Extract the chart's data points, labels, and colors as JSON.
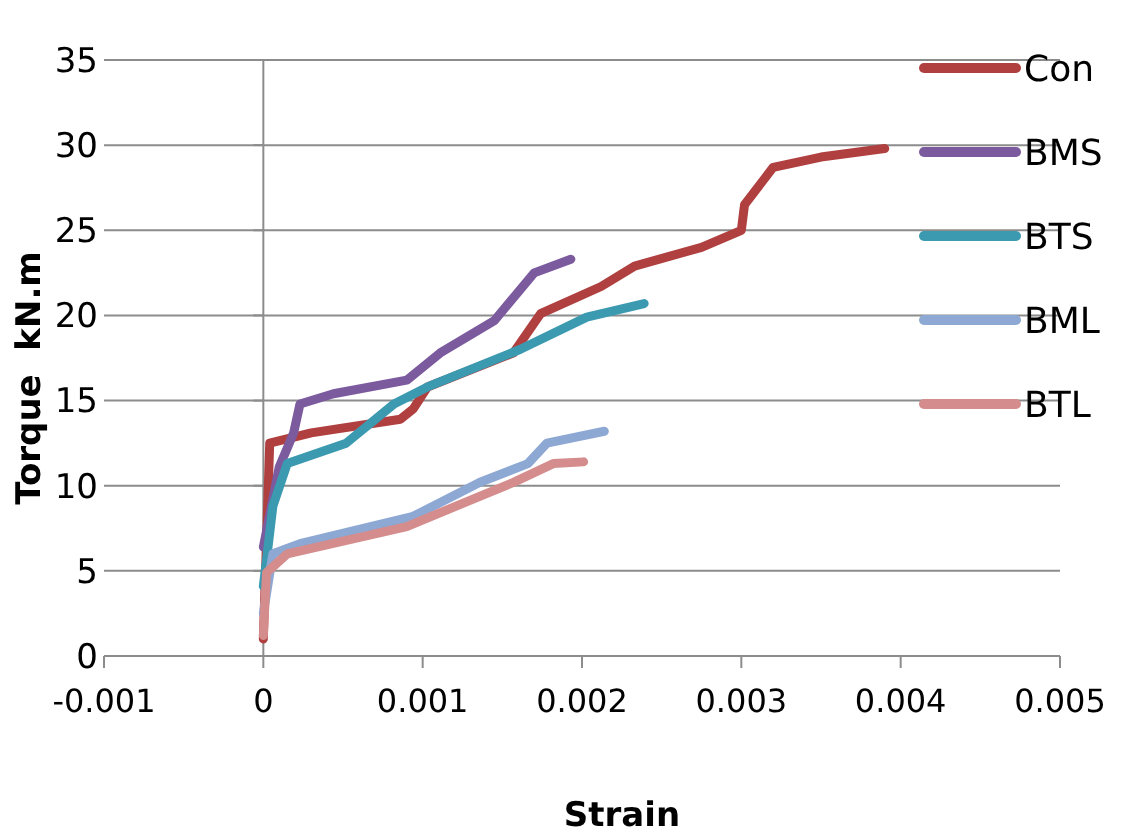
{
  "chart_data": {
    "type": "line",
    "xlabel": "Strain",
    "ylabel": "Torque  kN.m",
    "xlim": [
      -0.001,
      0.005
    ],
    "xticks": [
      -0.001,
      0,
      0.001,
      0.002,
      0.003,
      0.004,
      0.005
    ],
    "ylim": [
      0,
      35
    ],
    "yticks": [
      0,
      5,
      10,
      15,
      20,
      25,
      30,
      35
    ],
    "grid": "y",
    "ref_lines": [
      {
        "axis": "x",
        "value": 0,
        "color": "#8c8c8c"
      }
    ],
    "legend": "top right",
    "marker": "none",
    "line_style": "solid",
    "series": [
      {
        "name": "Con",
        "color": "#b04040",
        "x": [
          0,
          4e-05,
          0.0003,
          0.00086,
          0.00094,
          0.00103,
          0.00157,
          0.00174,
          0.00212,
          0.00233,
          0.00275,
          0.003,
          0.00302,
          0.0032,
          0.0035,
          0.0039
        ],
        "values": [
          1,
          12.5,
          13.1,
          13.9,
          14.5,
          15.8,
          17.8,
          20.1,
          21.7,
          22.9,
          24,
          25,
          26.5,
          28.7,
          29.3,
          29.8
        ]
      },
      {
        "name": "BMS",
        "color": "#7b5a9e",
        "x": [
          0,
          0.0001,
          0.00019,
          0.00023,
          0.00044,
          0.0009,
          0.00111,
          0.00145,
          0.0017,
          0.00193
        ],
        "values": [
          6.4,
          11.1,
          13.1,
          14.8,
          15.4,
          16.2,
          17.8,
          19.7,
          22.5,
          23.3
        ]
      },
      {
        "name": "BTS",
        "color": "#3b9ab0",
        "x": [
          0,
          6e-05,
          0.00015,
          0.00052,
          0.00082,
          0.00103,
          0.00161,
          0.00203,
          0.00239
        ],
        "values": [
          4.1,
          8.8,
          11.3,
          12.5,
          14.8,
          15.8,
          18,
          19.9,
          20.7
        ]
      },
      {
        "name": "BML",
        "color": "#8ea8d4",
        "x": [
          0,
          6e-05,
          0.00023,
          0.00094,
          0.00136,
          0.00166,
          0.00178,
          0.00214
        ],
        "values": [
          2.5,
          6,
          6.6,
          8.2,
          10.2,
          11.3,
          12.5,
          13.2
        ]
      },
      {
        "name": "BTL",
        "color": "#d48c8c",
        "x": [
          0,
          2e-05,
          0.00015,
          0.0009,
          0.00157,
          0.00182,
          0.00201
        ],
        "values": [
          1.2,
          4.9,
          6,
          7.6,
          10.2,
          11.3,
          11.4
        ]
      }
    ]
  }
}
